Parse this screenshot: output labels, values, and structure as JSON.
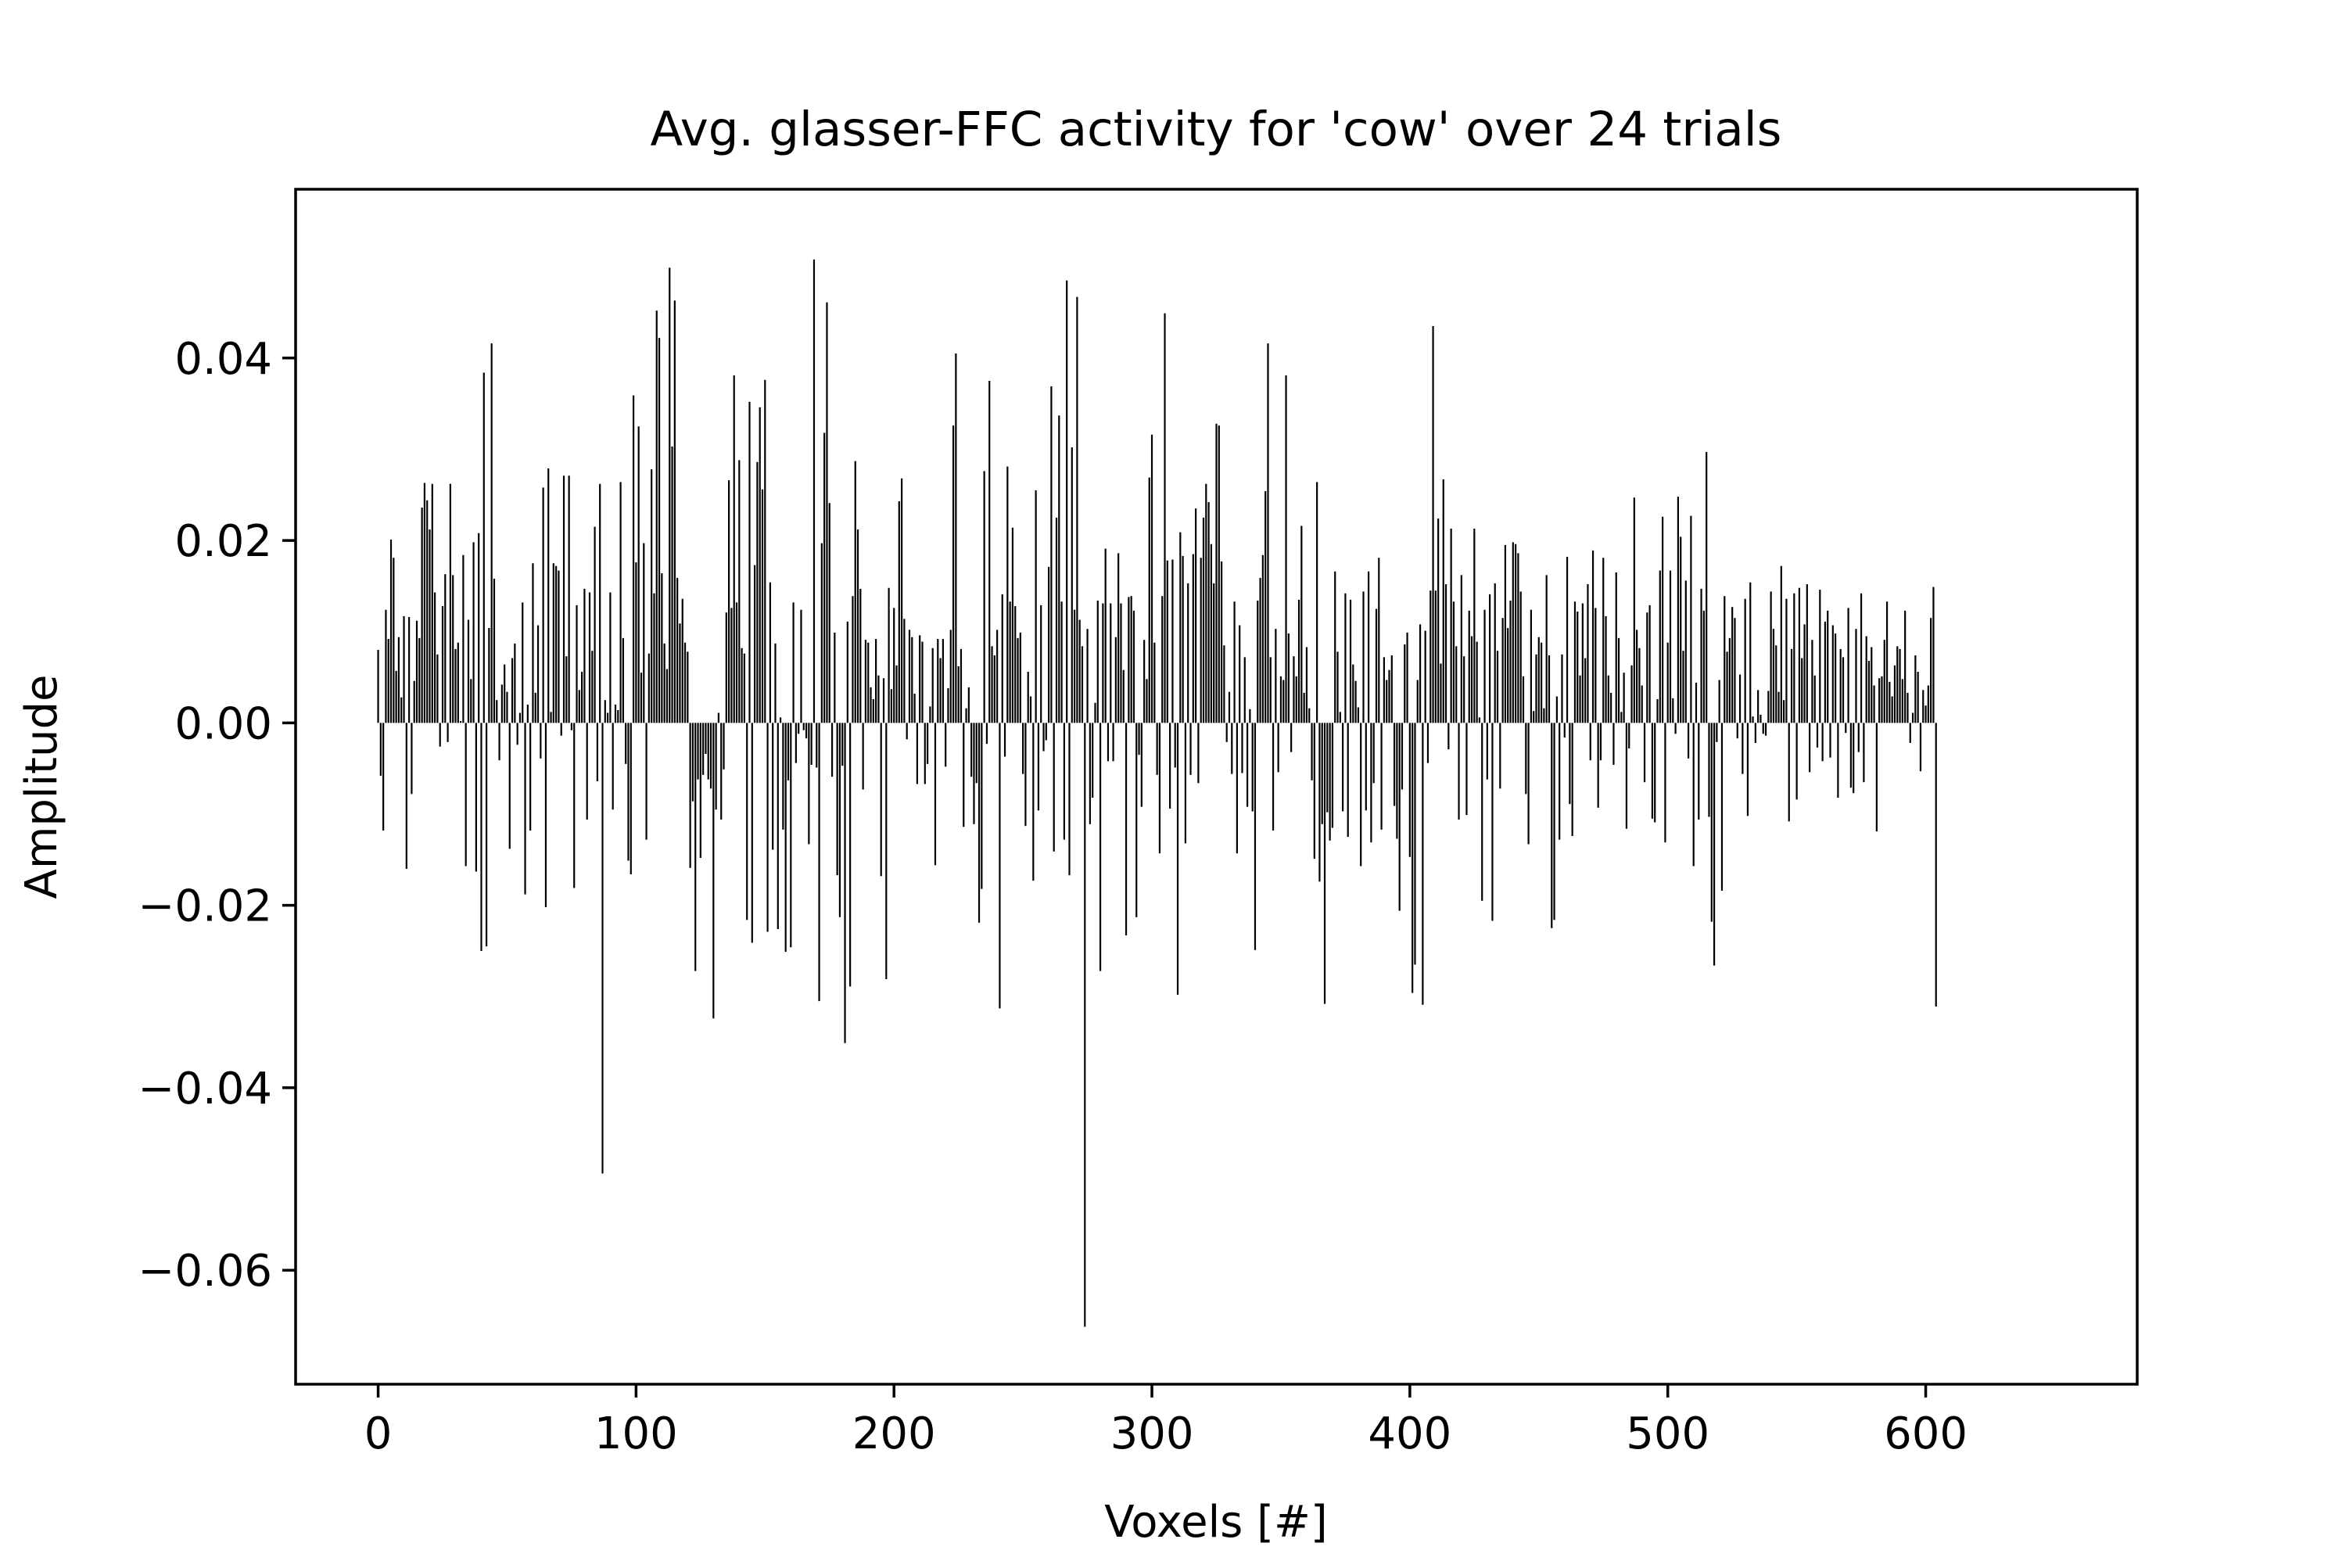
{
  "chart_data": {
    "type": "bar",
    "title": "Avg. glasser-FFC activity for 'cow' over 24 trials",
    "xlabel": "Voxels [#]",
    "ylabel": "Amplitude",
    "xlim": [
      -32,
      682
    ],
    "ylim": [
      -0.0725,
      0.0585
    ],
    "xticks": [
      0,
      100,
      200,
      300,
      400,
      500,
      600
    ],
    "xtick_labels": [
      "0",
      "100",
      "200",
      "300",
      "400",
      "500",
      "600"
    ],
    "yticks": [
      0.04,
      0.02,
      0.0,
      -0.02,
      -0.04,
      -0.06
    ],
    "ytick_labels": [
      "0.04",
      "0.02",
      "0.00",
      "−0.02",
      "−0.04",
      "−0.06"
    ],
    "grid": false,
    "bar_color": "#000000",
    "x_start": 0,
    "values": [
      0.008,
      -0.0058,
      -0.0118,
      0.0124,
      0.0092,
      0.0201,
      0.0181,
      0.0057,
      0.0094,
      0.0028,
      0.0117,
      -0.016,
      0.0116,
      -0.0078,
      0.0046,
      0.0112,
      0.0093,
      0.0236,
      0.0263,
      0.0244,
      0.0212,
      0.0262,
      0.0143,
      0.0075,
      -0.0026,
      0.0128,
      0.0163,
      -0.0021,
      0.0262,
      0.0162,
      0.0081,
      0.0088,
      0.0002,
      0.0184,
      -0.0157,
      0.0113,
      0.0048,
      0.0198,
      -0.0163,
      0.0208,
      -0.025,
      0.0384,
      -0.0245,
      0.0104,
      0.0416,
      0.0158,
      0.0025,
      -0.0041,
      0.0042,
      0.0064,
      0.0034,
      -0.0138,
      0.0071,
      0.0087,
      -0.0024,
      0.0011,
      0.0132,
      -0.0188,
      0.002,
      -0.0118,
      0.0175,
      0.0033,
      0.0107,
      -0.0039,
      0.0258,
      -0.0202,
      0.0279,
      0.0012,
      0.0175,
      0.0172,
      0.0167,
      -0.0014,
      0.0271,
      0.0073,
      0.0271,
      -0.0008,
      -0.0181,
      0.0129,
      0.0036,
      0.0056,
      0.0147,
      -0.0106,
      0.0143,
      0.0079,
      0.0215,
      -0.0064,
      0.0262,
      -0.0494,
      0.0025,
      0.0011,
      0.0143,
      -0.0095,
      0.002,
      0.0014,
      0.0264,
      0.0093,
      -0.0045,
      -0.0151,
      -0.0166,
      0.0359,
      0.0176,
      0.0325,
      0.0055,
      0.0197,
      -0.0128,
      0.0076,
      0.0278,
      0.0142,
      0.0452,
      0.0422,
      0.0164,
      0.0087,
      0.0059,
      0.0499,
      0.0303,
      0.0463,
      0.0159,
      0.0109,
      0.0136,
      0.0088,
      0.0078,
      -0.0159,
      -0.0086,
      -0.0272,
      -0.0062,
      -0.0148,
      -0.0057,
      -0.0034,
      -0.0062,
      -0.0072,
      -0.0324,
      -0.0095,
      0.0011,
      -0.0106,
      -0.0051,
      0.0121,
      0.0266,
      0.0126,
      0.0381,
      0.0132,
      0.0288,
      0.0082,
      0.0076,
      -0.0216,
      0.0352,
      -0.0241,
      0.0173,
      0.0286,
      0.0346,
      0.0256,
      0.0376,
      -0.0229,
      0.0154,
      -0.0139,
      0.0087,
      -0.0226,
      0.0006,
      -0.0117,
      -0.0251,
      -0.0063,
      -0.0246,
      0.0132,
      -0.0044,
      -0.0012,
      0.0124,
      -0.0008,
      -0.0017,
      -0.0133,
      -0.0046,
      0.0508,
      -0.0049,
      -0.0305,
      0.0197,
      0.0318,
      0.0461,
      0.0241,
      -0.0059,
      0.0099,
      -0.0167,
      -0.0213,
      -0.0047,
      -0.0351,
      0.0111,
      -0.0289,
      0.0139,
      0.0287,
      0.0212,
      0.0147,
      -0.0073,
      0.0091,
      0.0088,
      0.0039,
      0.0026,
      0.0092,
      0.0052,
      -0.0168,
      0.0049,
      -0.0281,
      0.0148,
      0.0037,
      0.0126,
      0.0063,
      0.0243,
      0.0268,
      0.0114,
      -0.0018,
      0.0102,
      0.0094,
      0.0032,
      -0.0067,
      0.0096,
      0.0089,
      -0.0067,
      -0.0045,
      0.0018,
      0.0082,
      -0.0156,
      0.0092,
      0.0071,
      0.0092,
      -0.0048,
      0.0038,
      0.0102,
      0.0326,
      0.0405,
      0.0062,
      0.0081,
      -0.0114,
      0.0016,
      0.0039,
      -0.0059,
      -0.0111,
      -0.0066,
      -0.0219,
      -0.0182,
      0.0276,
      -0.0023,
      0.0375,
      0.0084,
      0.0074,
      0.0102,
      -0.0313,
      0.0141,
      -0.0037,
      0.0281,
      0.0133,
      0.0214,
      0.0128,
      0.0093,
      0.0099,
      -0.0056,
      -0.0113,
      0.0056,
      0.0029,
      -0.0173,
      0.0255,
      -0.0096,
      0.0129,
      -0.0031,
      -0.0019,
      0.0171,
      0.0369,
      -0.0141,
      0.0225,
      0.0337,
      0.0133,
      -0.0128,
      0.0485,
      -0.0167,
      0.0302,
      0.0124,
      0.0467,
      0.0113,
      0.0084,
      -0.0662,
      0.0103,
      -0.0111,
      -0.0082,
      0.0022,
      0.0134,
      -0.0272,
      0.0131,
      0.0191,
      -0.0042,
      0.0131,
      -0.0042,
      0.0094,
      0.0186,
      0.0131,
      0.0058,
      -0.0233,
      0.0138,
      0.0139,
      0.0123,
      -0.0213,
      -0.0035,
      -0.0092,
      0.0091,
      0.0048,
      0.0269,
      0.0316,
      0.0088,
      -0.0057,
      -0.0143,
      0.0139,
      0.0449,
      0.0178,
      -0.0094,
      0.0179,
      -0.0049,
      -0.0298,
      0.0209,
      0.0183,
      -0.0132,
      0.0153,
      -0.0057,
      0.0185,
      0.0235,
      -0.0066,
      0.0181,
      0.0225,
      0.0262,
      0.0242,
      0.0196,
      0.0153,
      0.0328,
      0.0326,
      0.0177,
      0.0085,
      -0.0021,
      0.0034,
      -0.0056,
      0.0133,
      -0.0143,
      0.0107,
      -0.0055,
      0.0072,
      -0.0092,
      0.0015,
      -0.0097,
      -0.0249,
      0.0134,
      0.0159,
      0.0184,
      0.0254,
      0.0416,
      0.0072,
      -0.0118,
      0.0103,
      -0.0054,
      0.0051,
      0.0047,
      0.0381,
      0.0098,
      -0.0032,
      0.0073,
      0.0051,
      0.0135,
      0.0216,
      0.0033,
      0.0083,
      0.0016,
      -0.0063,
      -0.0149,
      0.0264,
      -0.0174,
      -0.0111,
      -0.0308,
      -0.0098,
      -0.0129,
      -0.0115,
      0.0166,
      0.0078,
      0.0012,
      -0.0097,
      0.0142,
      -0.0125,
      0.0135,
      0.0064,
      0.0046,
      0.0017,
      -0.0157,
      0.0144,
      -0.0096,
      0.0166,
      -0.0131,
      -0.0066,
      0.0125,
      0.0181,
      -0.0117,
      0.0072,
      0.0047,
      0.0058,
      0.0074,
      -0.0091,
      -0.0127,
      -0.0206,
      -0.0073,
      0.0086,
      0.0099,
      -0.0147,
      -0.0296,
      -0.0265,
      0.0047,
      0.0108,
      -0.0309,
      0.0101,
      -0.0044,
      0.0145,
      0.0435,
      0.0145,
      0.0224,
      0.0065,
      0.0267,
      0.0152,
      -0.0029,
      0.0213,
      0.0133,
      0.0084,
      -0.0106,
      0.0162,
      0.0073,
      -0.0101,
      0.0123,
      0.0095,
      0.0213,
      0.0089,
      0.0006,
      -0.0195,
      0.0124,
      -0.0062,
      0.0141,
      -0.0217,
      0.0153,
      0.0079,
      -0.0072,
      0.0115,
      0.0195,
      0.0104,
      0.0134,
      0.0198,
      0.0196,
      0.0186,
      0.0144,
      0.0051,
      -0.0078,
      -0.0133,
      0.0124,
      0.0013,
      0.0075,
      0.0094,
      0.0088,
      0.0016,
      0.0162,
      0.0074,
      -0.0225,
      -0.0216,
      0.0029,
      -0.0128,
      0.0075,
      -0.0016,
      0.0182,
      -0.0089,
      -0.0124,
      0.0133,
      0.0122,
      0.0052,
      0.0131,
      0.0071,
      0.0152,
      -0.0041,
      0.0189,
      0.0126,
      -0.0093,
      -0.0041,
      0.0181,
      0.0117,
      0.0052,
      0.0033,
      -0.0046,
      0.0165,
      0.0093,
      0.0012,
      0.0055,
      -0.0116,
      -0.0028,
      0.0063,
      0.0247,
      0.0102,
      0.0082,
      0.0041,
      -0.0065,
      0.0121,
      0.0129,
      -0.0105,
      -0.0109,
      0.0026,
      0.0167,
      0.0226,
      -0.0131,
      0.0088,
      0.0167,
      0.0027,
      -0.0012,
      0.0248,
      0.0204,
      0.0079,
      0.0156,
      -0.0039,
      0.0227,
      -0.0157,
      0.0044,
      -0.0106,
      0.0147,
      0.0123,
      0.0297,
      -0.0103,
      -0.0218,
      -0.0266,
      -0.0021,
      0.0047,
      -0.0184,
      0.0139,
      0.0078,
      0.0093,
      0.0127,
      0.0115,
      -0.0017,
      0.0053,
      -0.0056,
      0.0136,
      -0.0102,
      0.0154,
      0.0007,
      -0.0022,
      0.0036,
      0.0009,
      -0.0012,
      -0.0014,
      0.0035,
      0.0144,
      0.0103,
      0.0085,
      0.0034,
      0.0172,
      0.0025,
      0.0136,
      -0.0108,
      0.0081,
      0.0142,
      -0.0084,
      0.0148,
      0.0071,
      0.0108,
      0.0152,
      -0.0054,
      0.0091,
      0.0052,
      -0.0027,
      0.0146,
      -0.0042,
      0.0111,
      0.0123,
      -0.0038,
      0.0107,
      0.0098,
      -0.0082,
      0.0081,
      0.0072,
      -0.0011,
      0.0126,
      -0.0071,
      -0.0077,
      0.0103,
      -0.0032,
      0.0142,
      -0.0065,
      0.0095,
      0.0068,
      0.0083,
      0.0041,
      -0.0119,
      0.0049,
      0.0051,
      0.0091,
      0.0133,
      0.0045,
      0.0029,
      0.0063,
      0.0084,
      0.0081,
      0.0048,
      0.0123,
      0.0033,
      -0.0022,
      0.0011,
      0.0074,
      0.0056,
      -0.0053,
      0.0036,
      0.0019,
      0.0041,
      0.0115,
      0.0149,
      -0.0311
    ]
  }
}
